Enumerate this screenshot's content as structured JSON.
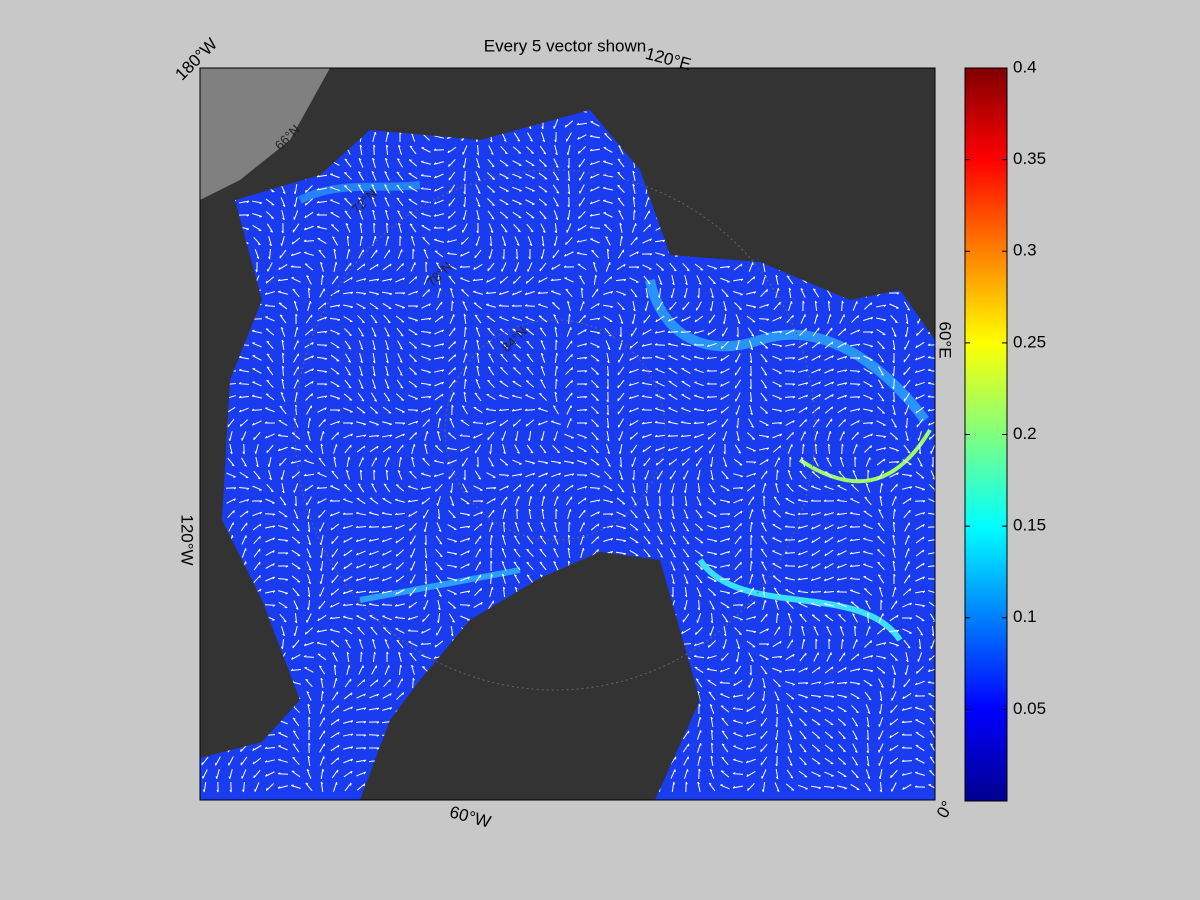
{
  "map": {
    "title": "Every 5 vector shown",
    "longitude_labels": [
      "180°W",
      "120°E",
      "60°E",
      "0°",
      "60°W",
      "120°W"
    ],
    "latitude_labels": [
      "66°N",
      "72°N",
      "78°N",
      "84°N"
    ],
    "colorbar": {
      "colormap": "jet",
      "lim": [
        0,
        0.4
      ],
      "ticks": [
        0.05,
        0.1,
        0.15,
        0.2,
        0.25,
        0.3,
        0.35,
        0.4
      ]
    }
  }
}
